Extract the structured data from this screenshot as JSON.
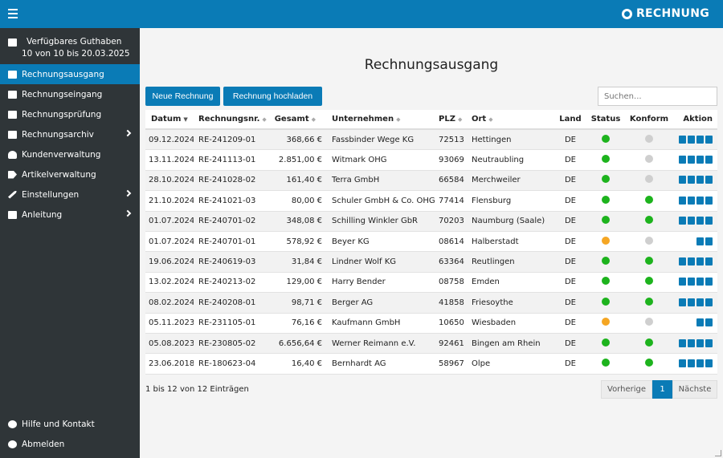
{
  "header": {
    "brand": "RECHNUNG"
  },
  "sidebar": {
    "credit_title": "Verfügbares Guthaben",
    "credit_sub": "10 von 10 bis 20.03.2025",
    "items": [
      {
        "label": "Rechnungsausgang",
        "active": true
      },
      {
        "label": "Rechnungseingang"
      },
      {
        "label": "Rechnungsprüfung"
      },
      {
        "label": "Rechnungsarchiv",
        "submenu": true
      },
      {
        "label": "Kundenverwaltung"
      },
      {
        "label": "Artikelverwaltung"
      },
      {
        "label": "Einstellungen",
        "submenu": true
      },
      {
        "label": "Anleitung",
        "submenu": true
      }
    ],
    "bottom": [
      {
        "label": "Hilfe und Kontakt"
      },
      {
        "label": "Abmelden"
      }
    ]
  },
  "main": {
    "title": "Rechnungsausgang",
    "btn_new": "Neue Rechnung",
    "btn_upload": "Rechnung hochladen",
    "search_placeholder": "Suchen...",
    "columns": [
      "Datum",
      "Rechnungsnr.",
      "Gesamt",
      "Unternehmen",
      "PLZ",
      "Ort",
      "Land",
      "Status",
      "Konform",
      "Aktion"
    ],
    "rows": [
      {
        "datum": "09.12.2024",
        "nr": "RE-241209-01",
        "gesamt": "368,66 €",
        "unternehmen": "Fassbinder Wege KG",
        "plz": "72513",
        "ort": "Hettingen",
        "land": "DE",
        "status": "green",
        "konform": "gray",
        "actions": 4
      },
      {
        "datum": "13.11.2024",
        "nr": "RE-241113-01",
        "gesamt": "2.851,00 €",
        "unternehmen": "Witmark OHG",
        "plz": "93069",
        "ort": "Neutraubling",
        "land": "DE",
        "status": "green",
        "konform": "gray",
        "actions": 4
      },
      {
        "datum": "28.10.2024",
        "nr": "RE-241028-02",
        "gesamt": "161,40 €",
        "unternehmen": "Terra GmbH",
        "plz": "66584",
        "ort": "Merchweiler",
        "land": "DE",
        "status": "green",
        "konform": "gray",
        "actions": 4
      },
      {
        "datum": "21.10.2024",
        "nr": "RE-241021-03",
        "gesamt": "80,00 €",
        "unternehmen": "Schuler GmbH & Co. OHG",
        "plz": "77414",
        "ort": "Flensburg",
        "land": "DE",
        "status": "green",
        "konform": "green",
        "actions": 4
      },
      {
        "datum": "01.07.2024",
        "nr": "RE-240701-02",
        "gesamt": "348,08 €",
        "unternehmen": "Schilling Winkler GbR",
        "plz": "70203",
        "ort": "Naumburg (Saale)",
        "land": "DE",
        "status": "green",
        "konform": "green",
        "actions": 4
      },
      {
        "datum": "01.07.2024",
        "nr": "RE-240701-01",
        "gesamt": "578,92 €",
        "unternehmen": "Beyer KG",
        "plz": "08614",
        "ort": "Halberstadt",
        "land": "DE",
        "status": "orange",
        "konform": "gray",
        "actions": 2
      },
      {
        "datum": "19.06.2024",
        "nr": "RE-240619-03",
        "gesamt": "31,84 €",
        "unternehmen": "Lindner Wolf KG",
        "plz": "63364",
        "ort": "Reutlingen",
        "land": "DE",
        "status": "green",
        "konform": "green",
        "actions": 4
      },
      {
        "datum": "13.02.2024",
        "nr": "RE-240213-02",
        "gesamt": "129,00 €",
        "unternehmen": "Harry Bender",
        "plz": "08758",
        "ort": "Emden",
        "land": "DE",
        "status": "green",
        "konform": "green",
        "actions": 4
      },
      {
        "datum": "08.02.2024",
        "nr": "RE-240208-01",
        "gesamt": "98,71 €",
        "unternehmen": "Berger AG",
        "plz": "41858",
        "ort": "Friesoythe",
        "land": "DE",
        "status": "green",
        "konform": "green",
        "actions": 4
      },
      {
        "datum": "05.11.2023",
        "nr": "RE-231105-01",
        "gesamt": "76,16 €",
        "unternehmen": "Kaufmann GmbH",
        "plz": "10650",
        "ort": "Wiesbaden",
        "land": "DE",
        "status": "orange",
        "konform": "gray",
        "actions": 2
      },
      {
        "datum": "05.08.2023",
        "nr": "RE-230805-02",
        "gesamt": "6.656,64 €",
        "unternehmen": "Werner Reimann e.V.",
        "plz": "92461",
        "ort": "Bingen am Rhein",
        "land": "DE",
        "status": "green",
        "konform": "green",
        "actions": 4
      },
      {
        "datum": "23.06.2018",
        "nr": "RE-180623-04",
        "gesamt": "16,40 €",
        "unternehmen": "Bernhardt AG",
        "plz": "58967",
        "ort": "Olpe",
        "land": "DE",
        "status": "green",
        "konform": "green",
        "actions": 4
      }
    ],
    "info": "1 bis 12 von 12 Einträgen",
    "pager": {
      "prev": "Vorherige",
      "page": "1",
      "next": "Nächste"
    }
  },
  "colors": {
    "accent": "#0a7bb6",
    "sidebar": "#2f3538",
    "green": "#1db31d",
    "orange": "#f5a623",
    "gray": "#cfcfcf"
  }
}
